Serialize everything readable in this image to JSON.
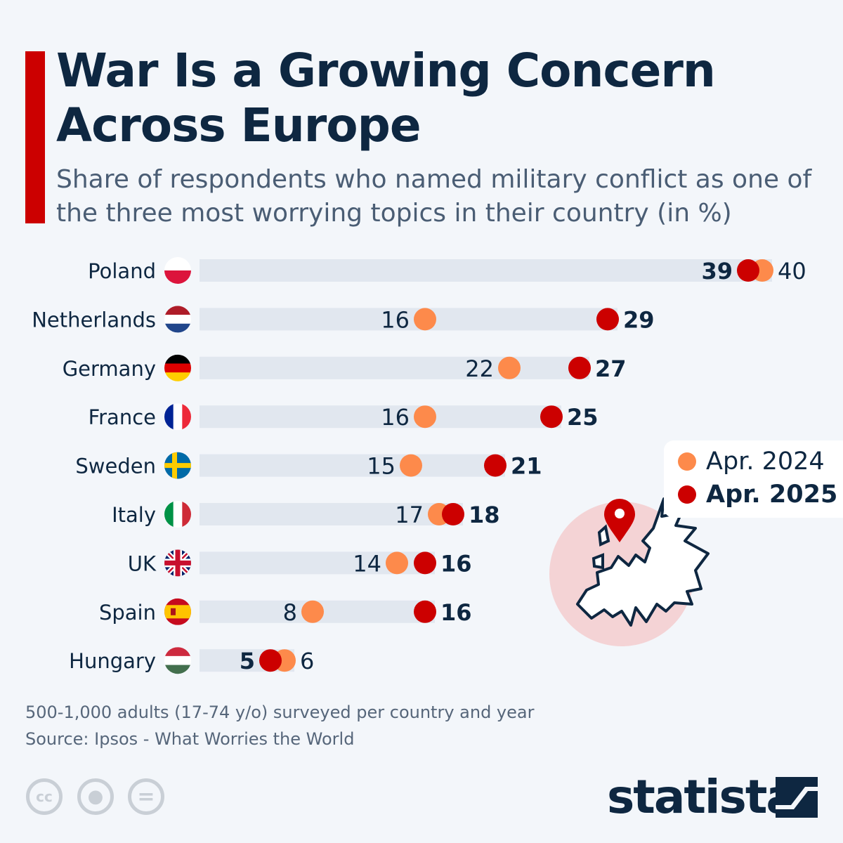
{
  "title": "War Is a Growing Concern Across Europe",
  "subtitle": "Share of respondents who named military conflict as one of the three most worrying topics in their country (in %)",
  "legend": [
    {
      "label": "Apr. 2024",
      "color": "#fd8a4b"
    },
    {
      "label": "Apr. 2025",
      "color": "#cc0000"
    }
  ],
  "chart_data": {
    "type": "dumbbell",
    "title": "War Is a Growing Concern Across Europe",
    "categories": [
      "Poland",
      "Netherlands",
      "Germany",
      "France",
      "Sweden",
      "Italy",
      "UK",
      "Spain",
      "Hungary"
    ],
    "flag_icons": [
      "poland-flag-icon",
      "netherlands-flag-icon",
      "germany-flag-icon",
      "france-flag-icon",
      "sweden-flag-icon",
      "italy-flag-icon",
      "uk-flag-icon",
      "spain-flag-icon",
      "hungary-flag-icon"
    ],
    "series": [
      {
        "name": "Apr. 2024",
        "color": "#fd8a4b",
        "values": [
          40,
          16,
          22,
          16,
          15,
          17,
          14,
          8,
          6
        ]
      },
      {
        "name": "Apr. 2025",
        "color": "#cc0000",
        "values": [
          39,
          29,
          27,
          25,
          21,
          18,
          16,
          16,
          5
        ]
      }
    ],
    "xlim": [
      0,
      40
    ],
    "grid": false,
    "legend_position": "right"
  },
  "footer": {
    "note": "500-1,000 adults (17-74 y/o) surveyed per country and year",
    "source": "Source: Ipsos - What Worries the World",
    "license_icons": [
      "cc-icon",
      "attribution-icon",
      "no-derivatives-icon"
    ],
    "brand": "statista"
  }
}
